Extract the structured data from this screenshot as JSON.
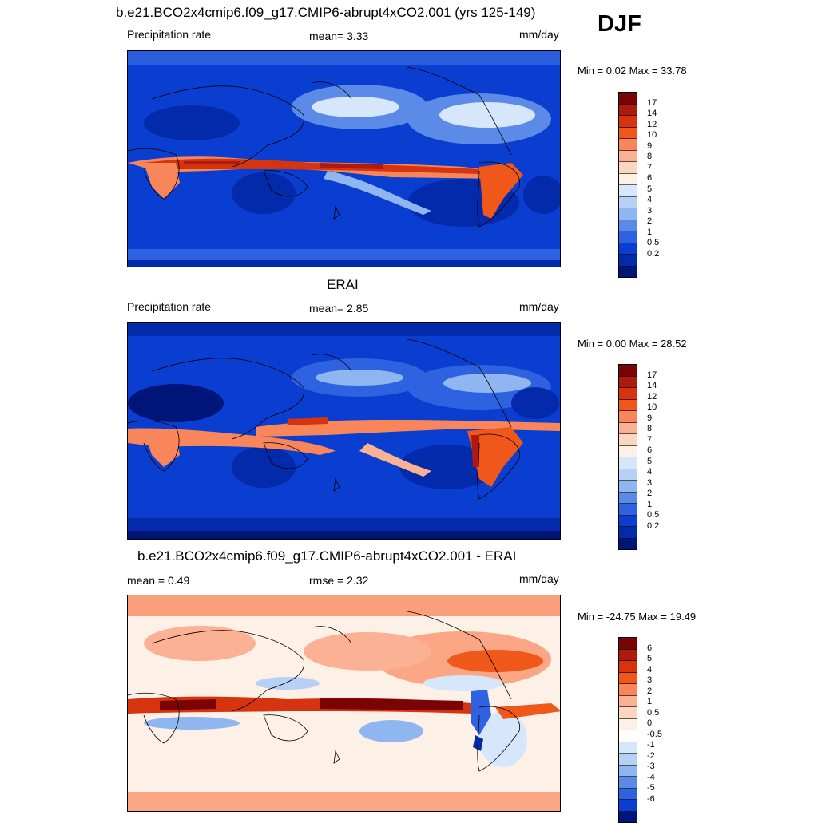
{
  "season": "DJF",
  "panels": [
    {
      "title": "b.e21.BCO2x4cmip6.f09_g17.CMIP6-abrupt4xCO2.001 (yrs 125-149)",
      "left_label": "Precipitation rate",
      "center_label": "mean=   3.33",
      "units": "mm/day",
      "minmax": "Min =   0.02 Max =  33.78",
      "levels": [
        "17",
        "14",
        "12",
        "10",
        "9",
        "8",
        "7",
        "6",
        "5",
        "4",
        "3",
        "2",
        "1",
        "0.5",
        "0.2"
      ],
      "colors": [
        "#7a0403",
        "#b01a0c",
        "#d6340e",
        "#f0571a",
        "#f9865a",
        "#fbb194",
        "#fdd6c2",
        "#fdf0e6",
        "#d7e7fb",
        "#b6d1f5",
        "#8fb6f0",
        "#5b8be6",
        "#2f62e0",
        "#0a3ed0",
        "#022aaa",
        "#00157a"
      ]
    },
    {
      "title": "ERAI",
      "left_label": "Precipitation rate",
      "center_label": "mean=   2.85",
      "units": "mm/day",
      "minmax": "Min =   0.00 Max =  28.52",
      "levels": [
        "17",
        "14",
        "12",
        "10",
        "9",
        "8",
        "7",
        "6",
        "5",
        "4",
        "3",
        "2",
        "1",
        "0.5",
        "0.2"
      ],
      "colors": [
        "#7a0403",
        "#b01a0c",
        "#d6340e",
        "#f0571a",
        "#f9865a",
        "#fbb194",
        "#fdd6c2",
        "#fdf0e6",
        "#d7e7fb",
        "#b6d1f5",
        "#8fb6f0",
        "#5b8be6",
        "#2f62e0",
        "#0a3ed0",
        "#022aaa",
        "#00157a"
      ]
    },
    {
      "title": "b.e21.BCO2x4cmip6.f09_g17.CMIP6-abrupt4xCO2.001 - ERAI",
      "left_label": "mean =   0.49",
      "center_label": "rmse =   2.32",
      "units": "mm/day",
      "minmax": "Min = -24.75 Max =  19.49",
      "levels": [
        "6",
        "5",
        "4",
        "3",
        "2",
        "1",
        "0.5",
        "0",
        "-0.5",
        "-1",
        "-2",
        "-3",
        "-4",
        "-5",
        "-6"
      ],
      "colors": [
        "#7a0403",
        "#b01a0c",
        "#d6340e",
        "#f0571a",
        "#f9865a",
        "#fbb194",
        "#fdd6c2",
        "#fdf0e6",
        "#ffffff",
        "#d7e7fb",
        "#b6d1f5",
        "#8fb6f0",
        "#5b8be6",
        "#2f62e0",
        "#0a3ed0",
        "#00157a"
      ]
    }
  ]
}
